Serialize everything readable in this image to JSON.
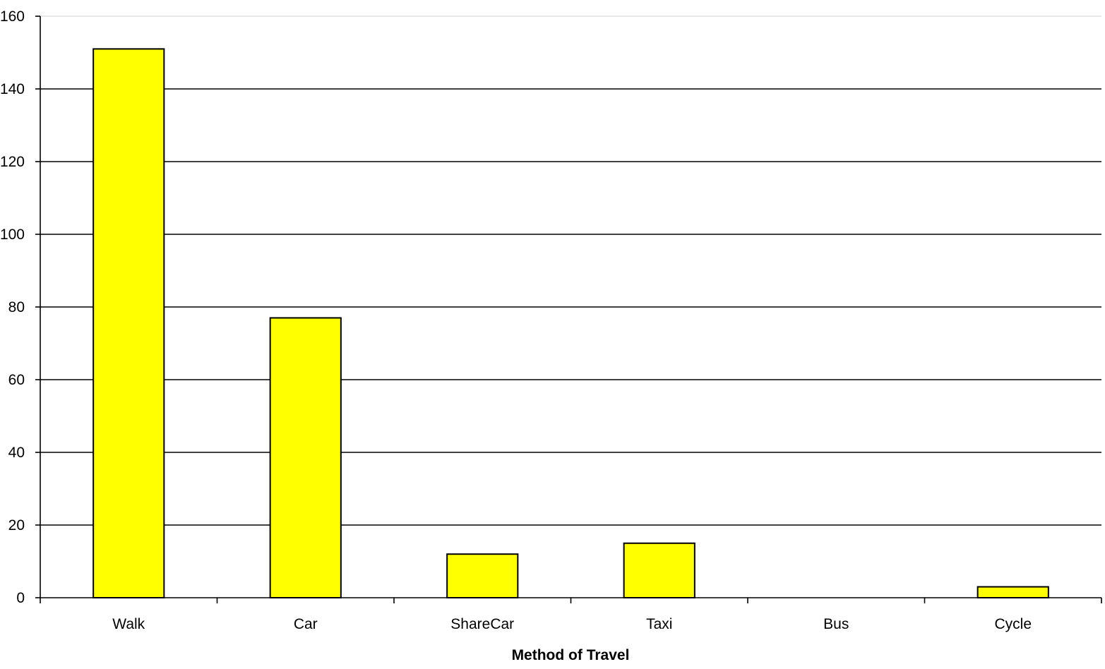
{
  "chart_data": {
    "type": "bar",
    "title": "",
    "xlabel": "Method of Travel",
    "ylabel": "",
    "categories": [
      "Walk",
      "Car",
      "ShareCar",
      "Taxi",
      "Bus",
      "Cycle"
    ],
    "values": [
      151,
      77,
      12,
      15,
      0,
      3
    ],
    "ylim": [
      0,
      160
    ],
    "yticks": [
      "0",
      "20",
      "40",
      "60",
      "80",
      "100",
      "120",
      "140",
      "160"
    ],
    "grid": true,
    "legend": "none",
    "colors": {
      "bar_fill": "#FFFF00",
      "bar_stroke": "#000000",
      "grid": "#000000",
      "axis": "#000000",
      "background": "#FFFFFF"
    }
  }
}
